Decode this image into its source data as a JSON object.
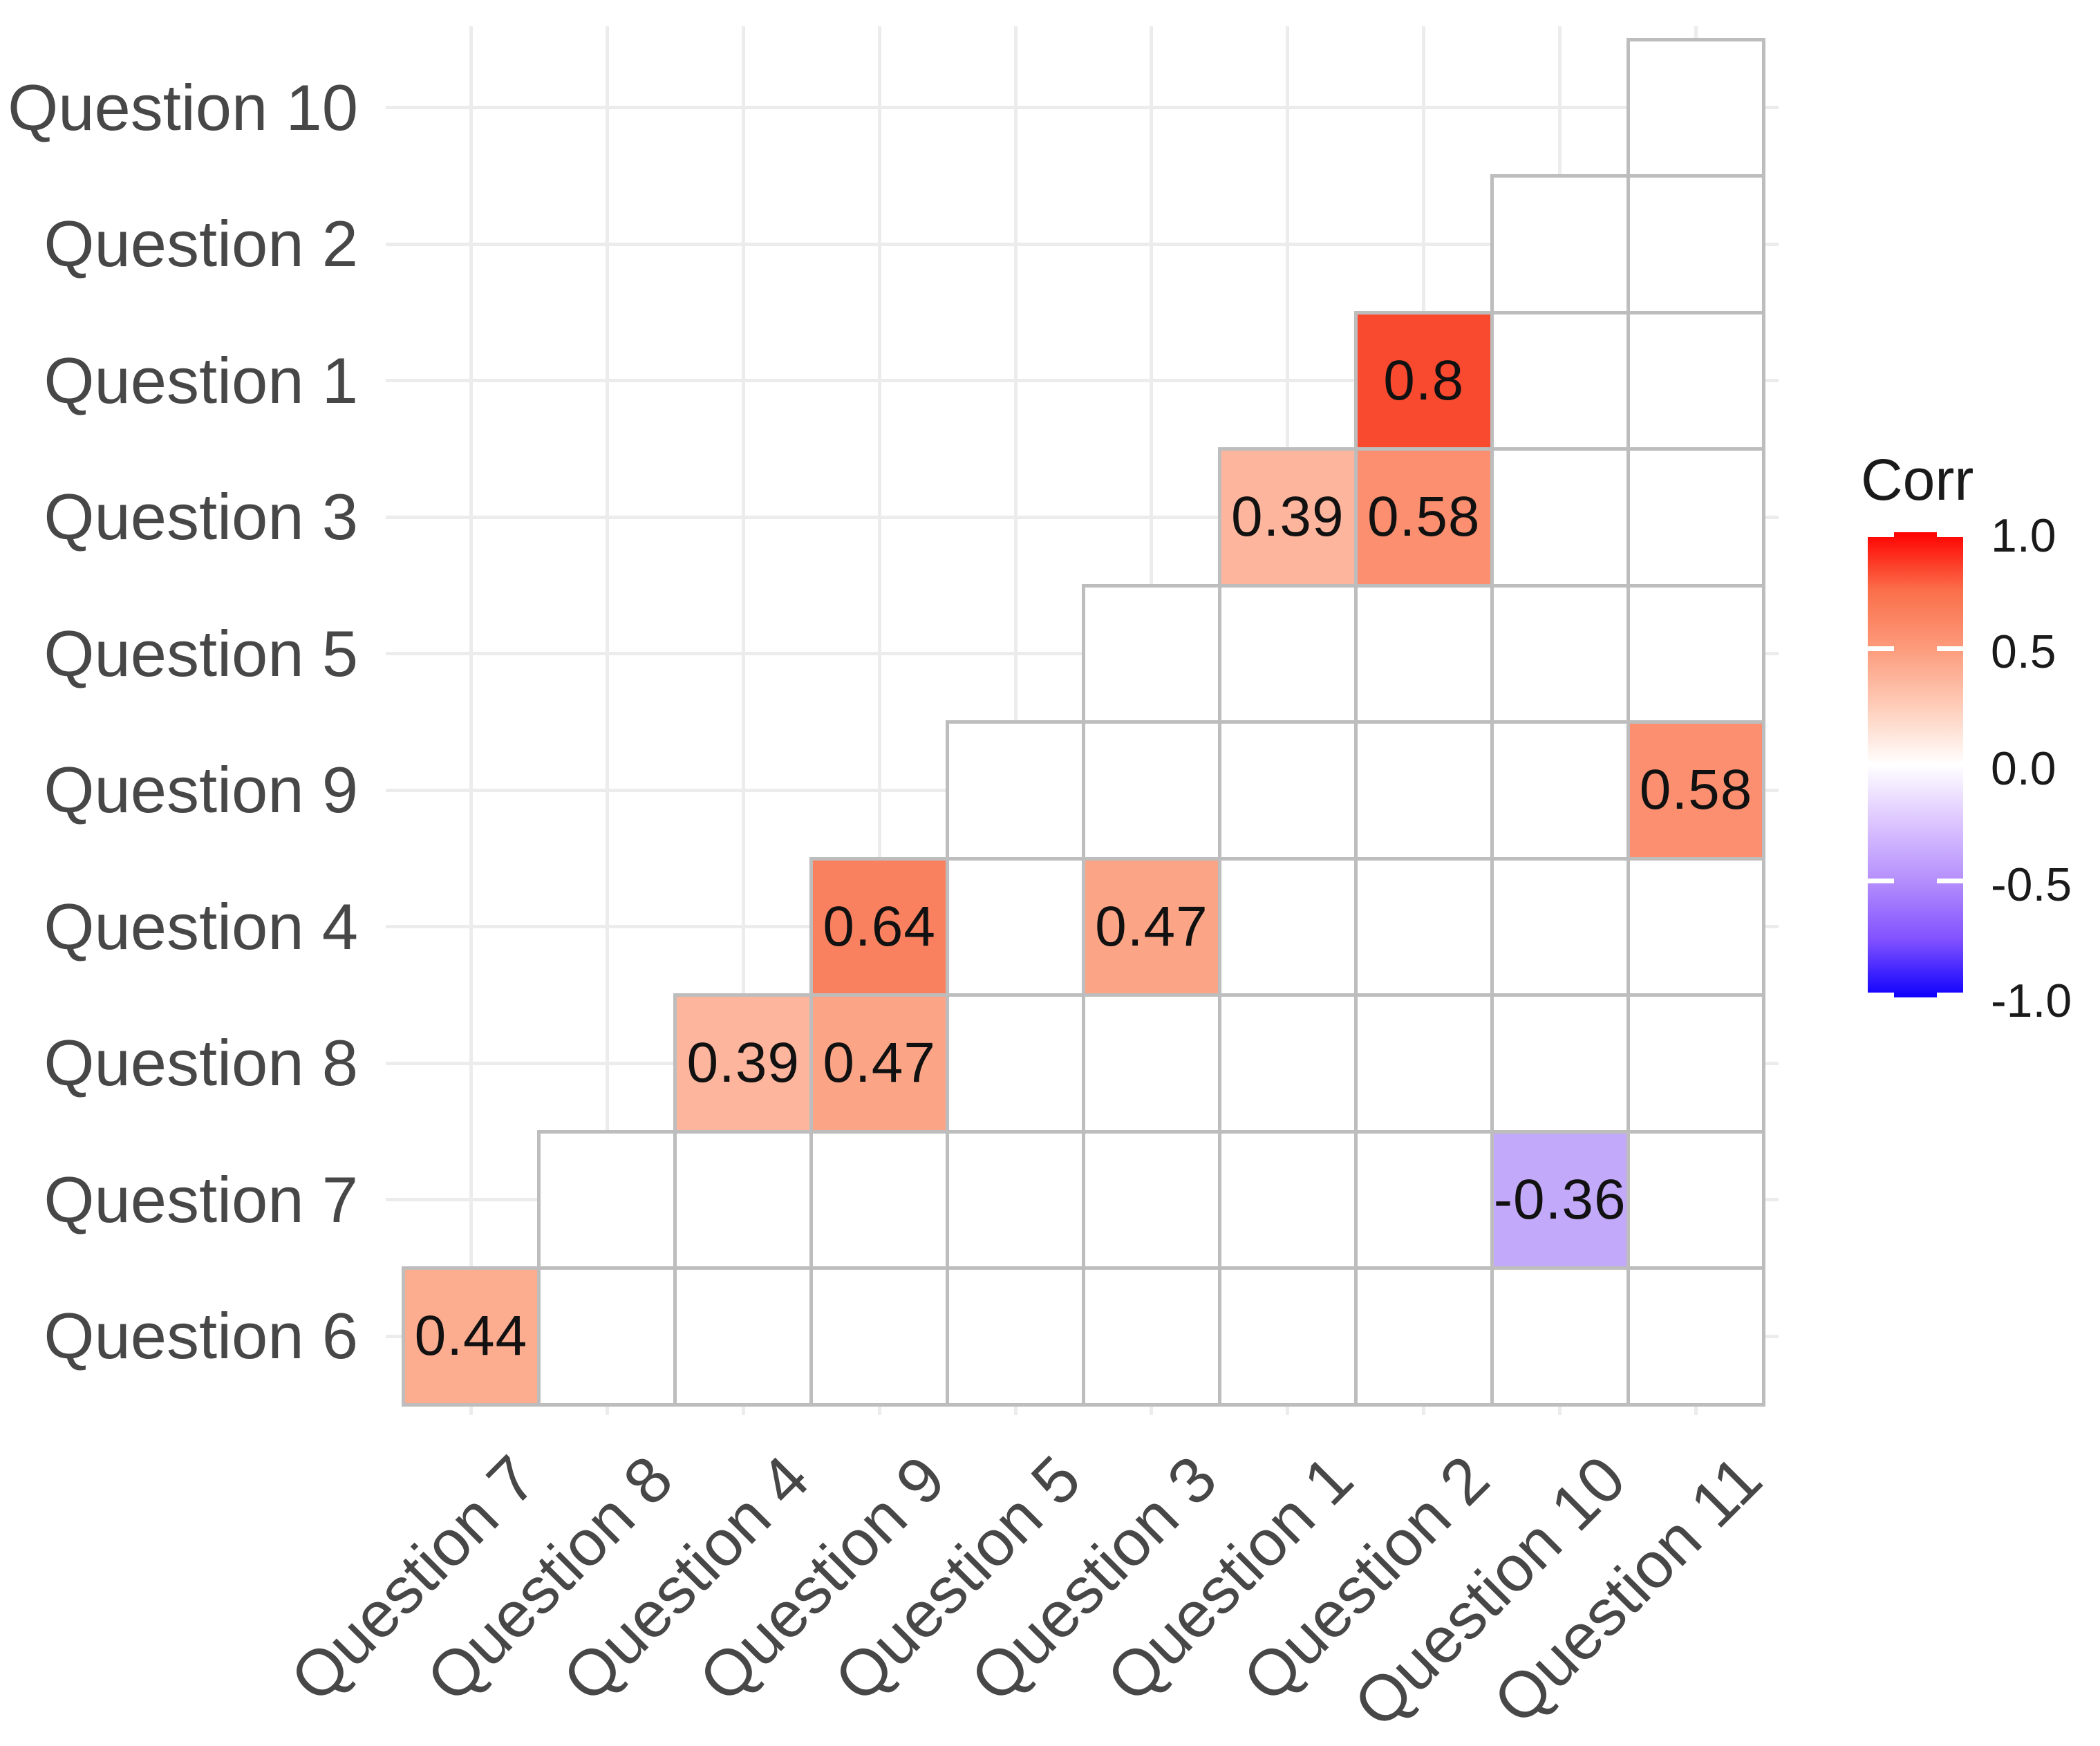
{
  "chart_data": {
    "type": "heatmap",
    "subtype": "correlation-matrix-upper-triangle",
    "title": "",
    "x_categories": [
      "Question 7",
      "Question 8",
      "Question 4",
      "Question 9",
      "Question 5",
      "Question 3",
      "Question 1",
      "Question 2",
      "Question 10",
      "Question 11"
    ],
    "y_categories_top_to_bottom": [
      "Question 10",
      "Question 2",
      "Question 1",
      "Question 3",
      "Question 5",
      "Question 9",
      "Question 4",
      "Question 8",
      "Question 7",
      "Question 6"
    ],
    "triangle_rule": "row i (0-indexed from top) has outlined cells in columns 9-i through 9",
    "cells": [
      {
        "row": "Question 1",
        "col": "Question 2",
        "value": 0.8,
        "label": "0.8",
        "color": "#f94a30"
      },
      {
        "row": "Question 3",
        "col": "Question 1",
        "value": 0.39,
        "label": "0.39",
        "color": "#fdb69d"
      },
      {
        "row": "Question 3",
        "col": "Question 2",
        "value": 0.58,
        "label": "0.58",
        "color": "#fb8f6f"
      },
      {
        "row": "Question 9",
        "col": "Question 11",
        "value": 0.58,
        "label": "0.58",
        "color": "#fb8f6f"
      },
      {
        "row": "Question 4",
        "col": "Question 9",
        "value": 0.64,
        "label": "0.64",
        "color": "#fa8160"
      },
      {
        "row": "Question 4",
        "col": "Question 3",
        "value": 0.47,
        "label": "0.47",
        "color": "#fca586"
      },
      {
        "row": "Question 8",
        "col": "Question 4",
        "value": 0.39,
        "label": "0.39",
        "color": "#fdb69d"
      },
      {
        "row": "Question 8",
        "col": "Question 9",
        "value": 0.47,
        "label": "0.47",
        "color": "#fca586"
      },
      {
        "row": "Question 7",
        "col": "Question 10",
        "value": -0.36,
        "label": "-0.36",
        "color": "#c3a9fa"
      },
      {
        "row": "Question 6",
        "col": "Question 7",
        "value": 0.44,
        "label": "0.44",
        "color": "#fcac8f"
      }
    ],
    "empty_cell_color": "#ffffff",
    "legend": {
      "title": "Corr",
      "tick_labels": [
        "1.0",
        "0.5",
        "0.0",
        "-0.5",
        "-1.0"
      ],
      "range": [
        -1.0,
        1.0
      ],
      "position": "right",
      "gradient_stops_top_to_bottom": [
        "#ff0000",
        "#fb6f4a",
        "#fc9b7c",
        "#fecdb9",
        "#ffffff",
        "#dcc5ff",
        "#b48efc",
        "#8252ff",
        "#0d00fc"
      ]
    },
    "style_colors": {
      "cell_border": "#bdbdbd",
      "panel_grid": "#ececec",
      "background": "#ffffff",
      "axis_text": "#474747",
      "cell_value_text": "#111111",
      "legend_text": "#1a1a1a"
    },
    "grid_on": true,
    "legend_position": "right"
  }
}
